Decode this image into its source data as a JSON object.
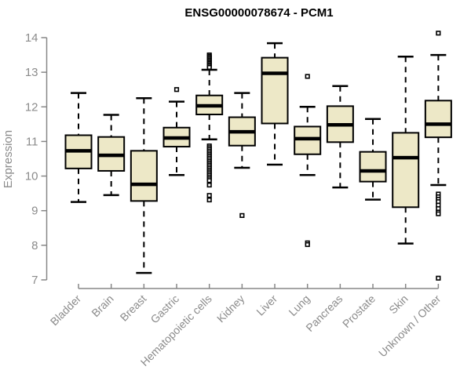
{
  "title": "ENSG00000078674 - PCM1",
  "colors": {
    "box_fill": "#EDE8C7",
    "box_border": "#000000",
    "median": "#000000",
    "whisker": "#000000",
    "axis": "#878787",
    "tick_label": "#8b8b8b",
    "title": "#000000",
    "background": "#ffffff"
  },
  "chart_data": {
    "type": "boxplot",
    "title": "ENSG00000078674 - PCM1",
    "xlabel": "",
    "ylabel": "Expression",
    "ylim": [
      7,
      14
    ],
    "yticks": [
      7,
      8,
      9,
      10,
      11,
      12,
      13,
      14
    ],
    "grid": false,
    "legend": "none",
    "categories": [
      "Bladder",
      "Brain",
      "Breast",
      "Gastric",
      "Hematopoietic cells",
      "Kidney",
      "Liver",
      "Lung",
      "Pancreas",
      "Prostate",
      "Skin",
      "Unknown / Other"
    ],
    "series": [
      {
        "name": "Bladder",
        "whisker_low": 9.25,
        "q1": 10.22,
        "median": 10.73,
        "q3": 11.18,
        "whisker_high": 12.4,
        "outliers": []
      },
      {
        "name": "Brain",
        "whisker_low": 9.45,
        "q1": 10.15,
        "median": 10.6,
        "q3": 11.13,
        "whisker_high": 11.77,
        "outliers": []
      },
      {
        "name": "Breast",
        "whisker_low": 7.2,
        "q1": 9.28,
        "median": 9.76,
        "q3": 10.73,
        "whisker_high": 12.25,
        "outliers": []
      },
      {
        "name": "Gastric",
        "whisker_low": 10.03,
        "q1": 10.85,
        "median": 11.1,
        "q3": 11.4,
        "whisker_high": 12.15,
        "outliers": [
          12.5
        ]
      },
      {
        "name": "Hematopoietic cells",
        "whisker_low": 11.06,
        "q1": 11.78,
        "median": 12.03,
        "q3": 12.33,
        "whisker_high": 13.07,
        "outliers": [
          13.5,
          13.46,
          13.42,
          13.38,
          13.34,
          13.3,
          13.26,
          13.22,
          13.18,
          13.14,
          10.87,
          10.82,
          10.77,
          10.72,
          10.67,
          10.62,
          10.57,
          10.52,
          10.47,
          10.42,
          10.37,
          10.32,
          10.27,
          10.22,
          10.17,
          10.12,
          10.07,
          10.02,
          9.97,
          9.92,
          9.87,
          9.74,
          9.44,
          9.31
        ]
      },
      {
        "name": "Kidney",
        "whisker_low": 10.24,
        "q1": 10.88,
        "median": 11.28,
        "q3": 11.7,
        "whisker_high": 12.4,
        "outliers": [
          8.86
        ]
      },
      {
        "name": "Liver",
        "whisker_low": 10.33,
        "q1": 11.52,
        "median": 12.97,
        "q3": 13.42,
        "whisker_high": 13.84,
        "outliers": []
      },
      {
        "name": "Lung",
        "whisker_low": 10.03,
        "q1": 10.63,
        "median": 11.08,
        "q3": 11.43,
        "whisker_high": 12.0,
        "outliers": [
          12.88,
          8.07,
          8.02
        ]
      },
      {
        "name": "Pancreas",
        "whisker_low": 9.67,
        "q1": 10.98,
        "median": 11.48,
        "q3": 12.02,
        "whisker_high": 12.6,
        "outliers": []
      },
      {
        "name": "Prostate",
        "whisker_low": 9.32,
        "q1": 9.84,
        "median": 10.15,
        "q3": 10.7,
        "whisker_high": 11.65,
        "outliers": []
      },
      {
        "name": "Skin",
        "whisker_low": 8.05,
        "q1": 9.1,
        "median": 10.53,
        "q3": 11.25,
        "whisker_high": 13.45,
        "outliers": []
      },
      {
        "name": "Unknown / Other",
        "whisker_low": 9.74,
        "q1": 11.12,
        "median": 11.5,
        "q3": 12.18,
        "whisker_high": 13.5,
        "outliers": [
          14.13,
          9.48,
          9.4,
          9.33,
          9.26,
          9.16,
          9.06,
          8.96,
          8.91,
          7.05
        ]
      }
    ]
  }
}
